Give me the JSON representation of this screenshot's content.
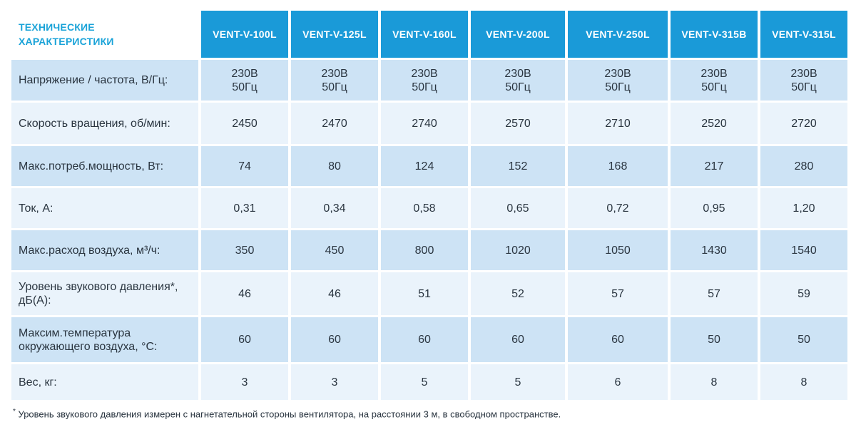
{
  "header": {
    "title_line1": "ТЕХНИЧЕСКИЕ",
    "title_line2": "ХАРАКТЕРИСТИКИ",
    "models": [
      "VENT-V-100L",
      "VENT-V-125L",
      "VENT-V-160L",
      "VENT-V-200L",
      "VENT-V-250L",
      "VENT-V-315B",
      "VENT-V-315L"
    ]
  },
  "rows": [
    {
      "label": "Напряжение / частота, В/Гц:",
      "values": [
        [
          "230В",
          "50Гц"
        ],
        [
          "230В",
          "50Гц"
        ],
        [
          "230В",
          "50Гц"
        ],
        [
          "230В",
          "50Гц"
        ],
        [
          "230В",
          "50Гц"
        ],
        [
          "230В",
          "50Гц"
        ],
        [
          "230В",
          "50Гц"
        ]
      ]
    },
    {
      "label": "Скорость вращения, об/мин:",
      "values": [
        "2450",
        "2470",
        "2740",
        "2570",
        "2710",
        "2520",
        "2720"
      ]
    },
    {
      "label": "Макс.потреб.мощность, Вт:",
      "values": [
        "74",
        "80",
        "124",
        "152",
        "168",
        "217",
        "280"
      ]
    },
    {
      "label": "Ток, А:",
      "values": [
        "0,31",
        "0,34",
        "0,58",
        "0,65",
        "0,72",
        "0,95",
        "1,20"
      ]
    },
    {
      "label": "Макс.расход воздуха, м³/ч:",
      "values": [
        "350",
        "450",
        "800",
        "1020",
        "1050",
        "1430",
        "1540"
      ]
    },
    {
      "label": "Уровень звукового давления*, дБ(А):",
      "values": [
        "46",
        "46",
        "51",
        "52",
        "57",
        "57",
        "59"
      ]
    },
    {
      "label": "Максим.температура окружающего воздуха, °С:",
      "values": [
        "60",
        "60",
        "60",
        "60",
        "60",
        "50",
        "50"
      ]
    },
    {
      "label": "Вес, кг:",
      "values": [
        "3",
        "3",
        "5",
        "5",
        "6",
        "8",
        "8"
      ]
    }
  ],
  "footnote": {
    "mark": "*",
    "text": "Уровень звукового давления измерен с нагнетательной стороны вентилятора, на расстоянии 3 м, в свободном пространстве."
  },
  "colors": {
    "header_bg": "#1a9ad8",
    "title_text": "#1aa3d8",
    "row_shade": "#cde3f5",
    "row_plain": "#eaf3fb"
  }
}
